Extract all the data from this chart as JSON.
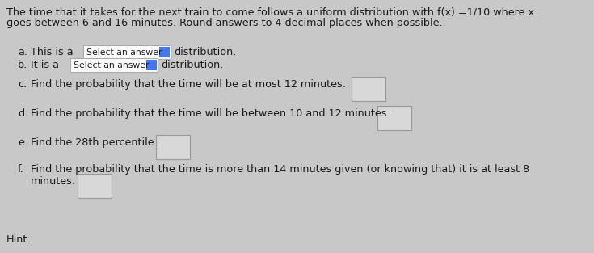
{
  "background_color": "#c8c8c8",
  "inner_bg": "#e8e8e8",
  "title_line1": "The time that it takes for the next train to come follows a uniform distribution with f(x) =1/10 where x",
  "title_line2": "goes between 6 and 16 minutes. Round answers to 4 decimal places when possible.",
  "item_a_pre": "a.  This is a",
  "item_a_post": " distribution.",
  "item_b_pre": "b.  It is a",
  "item_b_post": " distribution.",
  "item_c": "c.  Find the probability that the time will be at most 12 minutes.",
  "item_d": "d.  Find the probability that the time will be between 10 and 12 minutes.",
  "item_e": "e.  Find the 28th percentile.",
  "item_f1": "f.  Find the probability that the time is more than 14 minutes given (or knowing that) it is at least 8",
  "item_f2": "    minutes.",
  "dropdown_text": "Select an answer",
  "hint": "Hint:",
  "text_color": "#1a1a1a",
  "dropdown_bg": "#ffffff",
  "dropdown_border": "#aaaaaa",
  "box_bg": "#d8d8d8",
  "box_border": "#999999",
  "icon_color": "#4477ee",
  "fs_title": 9.2,
  "fs_body": 9.2,
  "fs_dropdown": 7.8
}
